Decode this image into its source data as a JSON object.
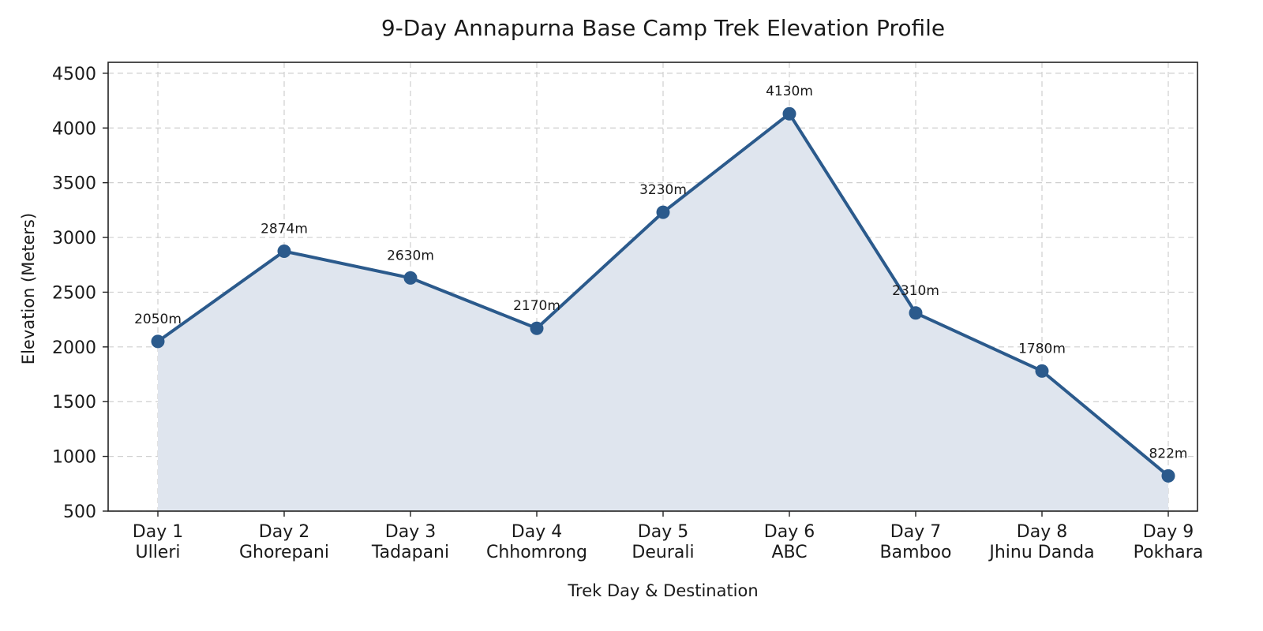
{
  "chart_data": {
    "type": "line",
    "title": "9-Day Annapurna Base Camp Trek Elevation Profile",
    "xlabel": "Trek Day & Destination",
    "ylabel": "Elevation (Meters)",
    "categories": [
      [
        "Day 1",
        "Ulleri"
      ],
      [
        "Day 2",
        "Ghorepani"
      ],
      [
        "Day 3",
        "Tadapani"
      ],
      [
        "Day 4",
        "Chhomrong"
      ],
      [
        "Day 5",
        "Deurali"
      ],
      [
        "Day 6",
        "ABC"
      ],
      [
        "Day 7",
        "Bamboo"
      ],
      [
        "Day 8",
        "Jhinu Danda"
      ],
      [
        "Day 9",
        "Pokhara"
      ]
    ],
    "series": [
      {
        "values": [
          2050,
          2874,
          2630,
          2170,
          3230,
          4130,
          2310,
          1780,
          822
        ],
        "data_labels": [
          "2050m",
          "2874m",
          "2630m",
          "2170m",
          "3230m",
          "4130m",
          "2310m",
          "1780m",
          "822m"
        ]
      }
    ],
    "ylim": [
      500,
      4600
    ],
    "yticks": [
      500,
      1000,
      1500,
      2000,
      2500,
      3000,
      3500,
      4000,
      4500
    ],
    "grid": true,
    "fill_area": true,
    "colors": {
      "line": "#2b5a8c",
      "marker": "#2b5a8c",
      "fill": "#dfe5ee"
    }
  }
}
